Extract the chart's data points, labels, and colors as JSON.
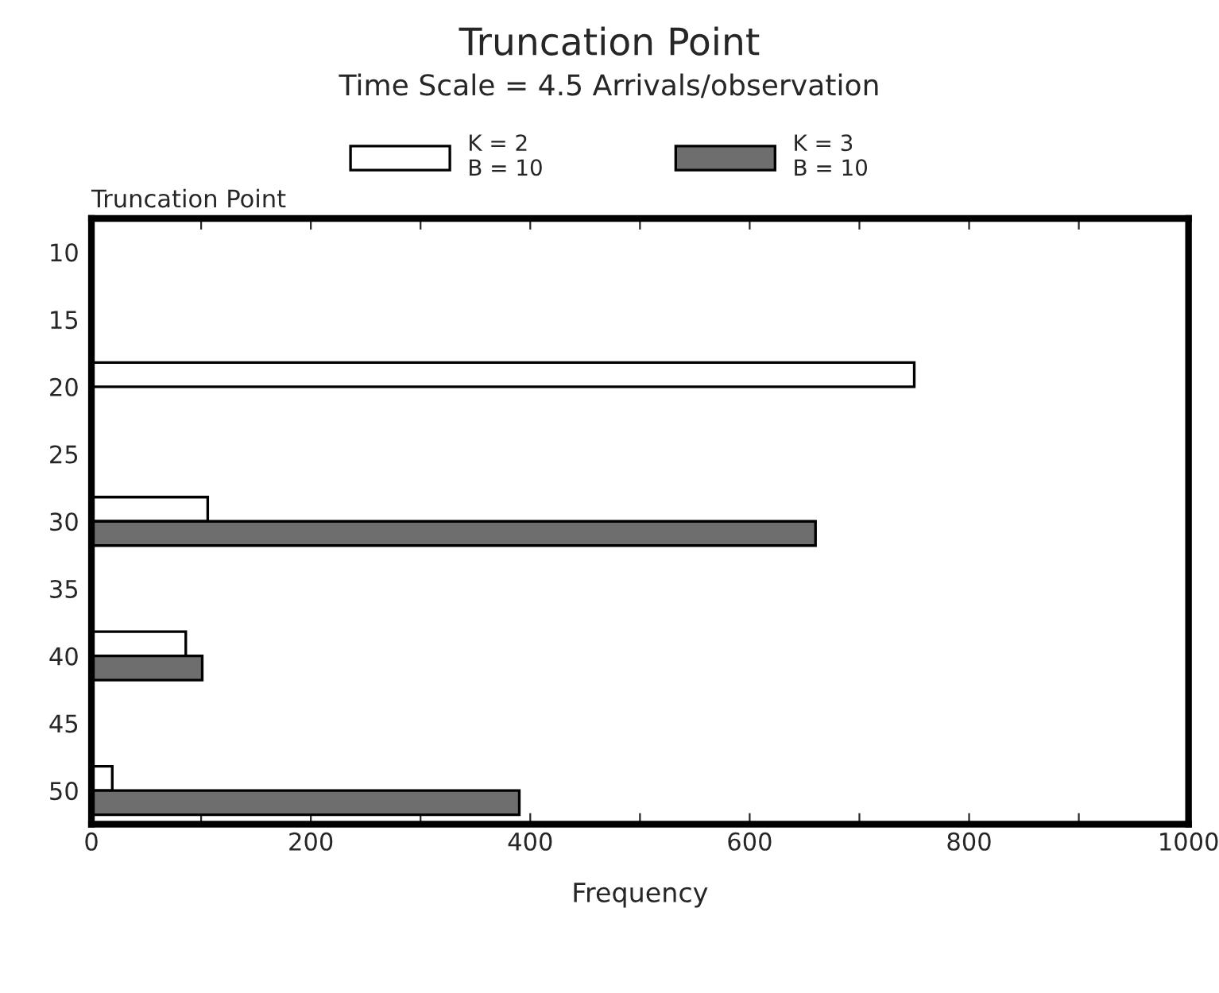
{
  "chart_data": {
    "type": "bar",
    "orientation": "horizontal",
    "title": "Truncation Point",
    "subtitle": "Time Scale = 4.5 Arrivals/observation",
    "ylabel": "Truncation Point",
    "xlabel": "Frequency",
    "categories": [
      "10",
      "15",
      "20",
      "25",
      "30",
      "35",
      "40",
      "45",
      "50"
    ],
    "series": [
      {
        "name": "K = 2\nB = 10",
        "color": "#ffffff",
        "values": [
          null,
          null,
          750,
          null,
          106,
          null,
          86,
          null,
          19
        ]
      },
      {
        "name": "K = 3\nB = 10",
        "color": "#6e6e6e",
        "values": [
          null,
          null,
          null,
          null,
          660,
          null,
          101,
          null,
          390
        ]
      }
    ],
    "xlim": [
      0,
      1000
    ],
    "xticks": [
      0,
      {
        "value": 100,
        "label": null
      },
      200,
      {
        "value": 300,
        "label": null
      },
      400,
      {
        "value": 500,
        "label": null
      },
      600,
      {
        "value": 700,
        "label": null
      },
      800,
      {
        "value": 900,
        "label": null
      },
      1000
    ],
    "grid": false,
    "legend": "top"
  }
}
